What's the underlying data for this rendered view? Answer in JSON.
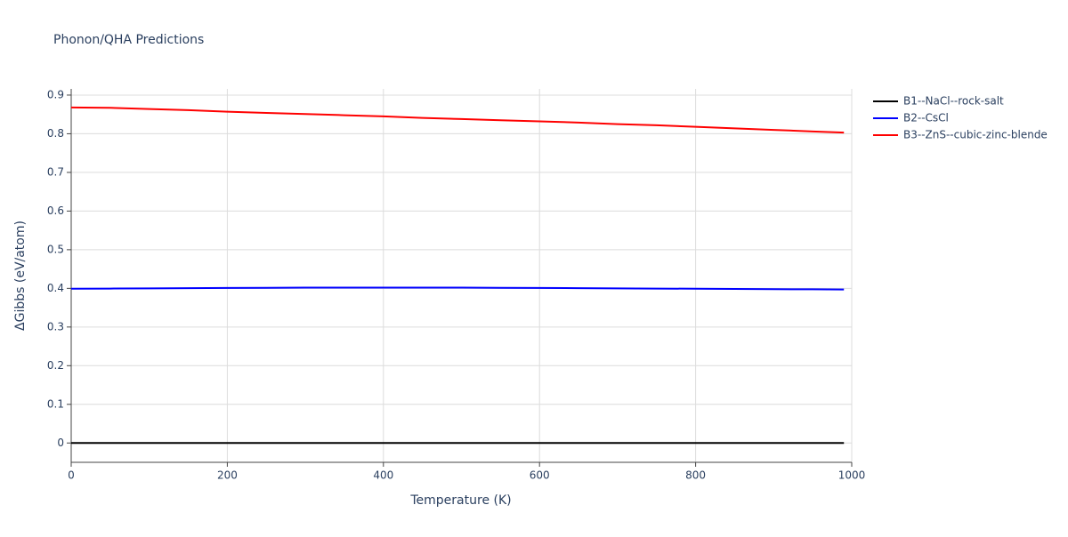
{
  "chart_data": {
    "type": "line",
    "title": "Phonon/QHA Predictions",
    "x_label": "Temperature (K)",
    "y_label": "ΔGibbs (eV/atom)",
    "x": [
      0,
      50,
      100,
      150,
      200,
      250,
      300,
      350,
      400,
      450,
      500,
      550,
      600,
      650,
      700,
      750,
      800,
      850,
      900,
      950,
      990
    ],
    "series": [
      {
        "name": "B1--NaCl--rock-salt",
        "color": "#000000",
        "values": [
          0,
          0,
          0,
          0,
          0,
          0,
          0,
          0,
          0,
          0,
          0,
          0,
          0,
          0,
          0,
          0,
          0,
          0,
          0,
          0,
          0
        ]
      },
      {
        "name": "B2--CsCl",
        "color": "#0000ff",
        "values": [
          0.399,
          0.3995,
          0.4,
          0.4005,
          0.401,
          0.4015,
          0.402,
          0.402,
          0.402,
          0.402,
          0.402,
          0.4015,
          0.401,
          0.4005,
          0.4,
          0.3995,
          0.399,
          0.3985,
          0.398,
          0.3975,
          0.397
        ]
      },
      {
        "name": "B3--ZnS--cubic-zinc-blende",
        "color": "#ff0000",
        "values": [
          0.868,
          0.867,
          0.864,
          0.861,
          0.857,
          0.854,
          0.851,
          0.848,
          0.845,
          0.841,
          0.838,
          0.835,
          0.832,
          0.829,
          0.825,
          0.822,
          0.818,
          0.814,
          0.81,
          0.806,
          0.803
        ]
      }
    ],
    "xlim": [
      0,
      1000
    ],
    "xticks": [
      0,
      200,
      400,
      600,
      800,
      1000
    ],
    "ylim": [
      -0.05,
      0.916
    ],
    "yticks": [
      0,
      0.1,
      0.2,
      0.3,
      0.4,
      0.5,
      0.6,
      0.7,
      0.8,
      0.9
    ],
    "grid": true
  }
}
